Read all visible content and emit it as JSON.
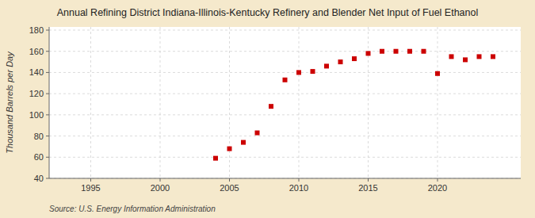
{
  "chart_data": {
    "type": "scatter",
    "title": "Annual Refining District Indiana-Illinois-Kentucky Refinery and Blender Net Input of Fuel Ethanol",
    "y_label": "Thousand Barrels per Day",
    "annotation": "Source: U.S. Energy Information Administration",
    "x": [
      2004,
      2005,
      2006,
      2007,
      2008,
      2009,
      2010,
      2011,
      2012,
      2013,
      2014,
      2015,
      2016,
      2017,
      2018,
      2019,
      2020,
      2021,
      2022,
      2023,
      2024
    ],
    "values": [
      59,
      68,
      74,
      83,
      108,
      133,
      140,
      141,
      146,
      150,
      153,
      158,
      160,
      160,
      160,
      160,
      139,
      155,
      152,
      155,
      155
    ],
    "color": "#cc0000",
    "marker": "square",
    "xlim": [
      1992,
      2026
    ],
    "ylim": [
      40,
      183
    ],
    "xticks": [
      1995,
      2000,
      2005,
      2010,
      2015,
      2020
    ],
    "yticks": [
      40,
      60,
      80,
      100,
      120,
      140,
      160,
      180
    ],
    "grid": true
  }
}
